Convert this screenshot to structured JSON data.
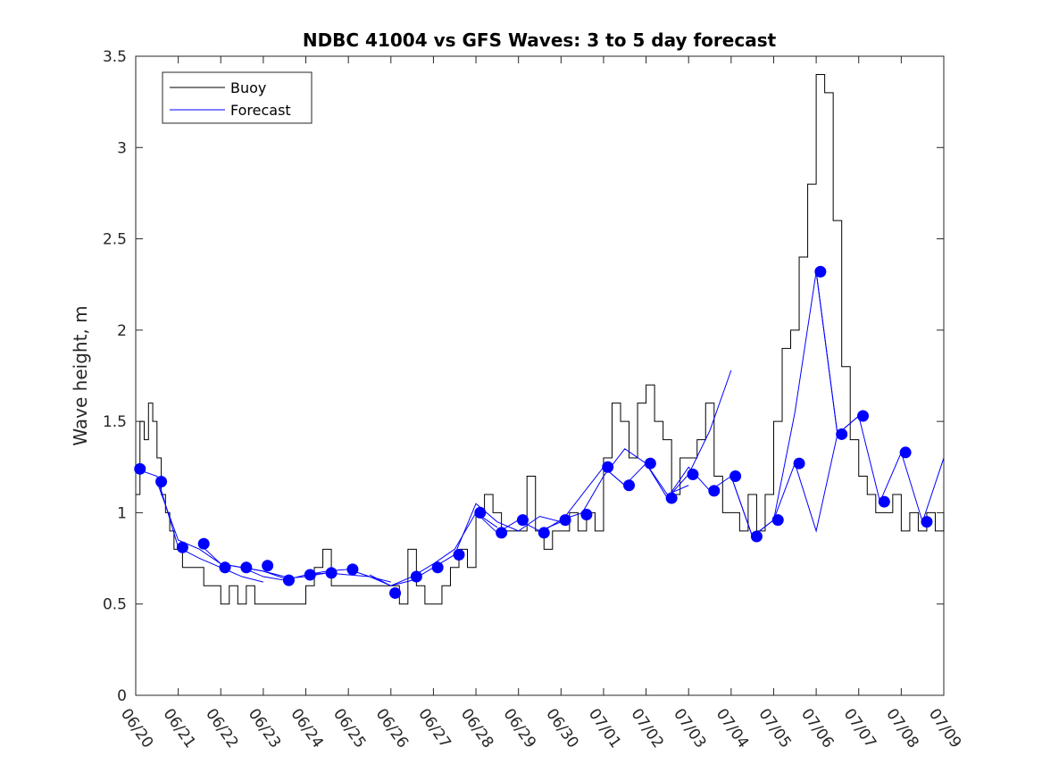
{
  "chart_data": {
    "type": "line",
    "title": "NDBC 41004 vs GFS Waves: 3 to 5 day forecast",
    "xlabel": "",
    "ylabel": "Wave height, m",
    "xlim": [
      0,
      19
    ],
    "ylim": [
      0,
      3.5
    ],
    "grid": false,
    "legend_placement": "top-left",
    "x_ticks": [
      "06/20",
      "06/21",
      "06/22",
      "06/23",
      "06/24",
      "06/25",
      "06/26",
      "06/27",
      "06/28",
      "06/29",
      "06/30",
      "07/01",
      "07/02",
      "07/03",
      "07/04",
      "07/05",
      "07/06",
      "07/07",
      "07/08",
      "07/09"
    ],
    "y_ticks": [
      "0",
      "0.5",
      "1",
      "1.5",
      "2",
      "2.5",
      "3",
      "3.5"
    ],
    "colors": {
      "buoy": "#000000",
      "forecast": "#0000ff",
      "axes": "#262626"
    },
    "legend": [
      "Buoy",
      "Forecast"
    ],
    "series": [
      {
        "name": "Buoy",
        "style": "line",
        "x": [
          0,
          0.1,
          0.2,
          0.3,
          0.4,
          0.5,
          0.6,
          0.7,
          0.8,
          0.9,
          1.0,
          1.1,
          1.2,
          1.4,
          1.6,
          1.8,
          2.0,
          2.2,
          2.4,
          2.6,
          2.8,
          3.0,
          3.2,
          3.5,
          3.8,
          4.0,
          4.2,
          4.4,
          4.6,
          4.8,
          5.0,
          5.2,
          5.5,
          5.8,
          6.0,
          6.2,
          6.4,
          6.6,
          6.8,
          7.0,
          7.2,
          7.4,
          7.6,
          7.8,
          8.0,
          8.2,
          8.4,
          8.6,
          8.8,
          9.0,
          9.2,
          9.4,
          9.6,
          9.8,
          10.0,
          10.2,
          10.4,
          10.6,
          10.8,
          11.0,
          11.2,
          11.4,
          11.6,
          11.8,
          12.0,
          12.2,
          12.4,
          12.6,
          12.8,
          13.0,
          13.2,
          13.4,
          13.6,
          13.8,
          14.0,
          14.2,
          14.4,
          14.6,
          14.8,
          15.0,
          15.2,
          15.4,
          15.6,
          15.8,
          16.0,
          16.2,
          16.4,
          16.6,
          16.8,
          17.0,
          17.2,
          17.4,
          17.6,
          17.8,
          18.0,
          18.2,
          18.4,
          18.6,
          18.8,
          19.0
        ],
        "values": [
          1.1,
          1.5,
          1.4,
          1.6,
          1.5,
          1.3,
          1.1,
          1.0,
          0.9,
          0.8,
          0.8,
          0.7,
          0.7,
          0.7,
          0.6,
          0.6,
          0.5,
          0.6,
          0.5,
          0.6,
          0.5,
          0.5,
          0.5,
          0.5,
          0.5,
          0.6,
          0.7,
          0.8,
          0.6,
          0.6,
          0.6,
          0.6,
          0.6,
          0.6,
          0.6,
          0.5,
          0.8,
          0.6,
          0.5,
          0.5,
          0.6,
          0.7,
          0.8,
          0.7,
          1.0,
          1.1,
          1.0,
          0.9,
          0.9,
          0.9,
          1.2,
          0.9,
          0.8,
          0.9,
          0.9,
          1.0,
          0.9,
          1.0,
          0.9,
          1.3,
          1.6,
          1.5,
          1.3,
          1.6,
          1.7,
          1.5,
          1.4,
          1.1,
          1.3,
          1.3,
          1.4,
          1.6,
          1.2,
          1.0,
          1.0,
          0.9,
          1.1,
          0.9,
          1.1,
          1.5,
          1.9,
          2.0,
          2.4,
          2.8,
          3.4,
          3.3,
          2.6,
          1.8,
          1.4,
          1.2,
          1.1,
          1.0,
          1.0,
          1.1,
          0.9,
          1.0,
          0.9,
          1.0,
          0.9,
          1.0
        ]
      },
      {
        "name": "Forecast",
        "style": "lines",
        "segments": [
          {
            "x": [
              0,
              0.5,
              1,
              1.5,
              2,
              2.5,
              3
            ],
            "values": [
              1.24,
              1.2,
              0.81,
              0.75,
              0.7,
              0.65,
              0.62
            ]
          },
          {
            "x": [
              0.5,
              1,
              1.5,
              2,
              2.5,
              3,
              3.5
            ],
            "values": [
              1.17,
              0.85,
              0.8,
              0.72,
              0.7,
              0.68,
              0.65
            ]
          },
          {
            "x": [
              1.5,
              2,
              2.5,
              3,
              3.5,
              4,
              4.5
            ],
            "values": [
              0.83,
              0.72,
              0.7,
              0.65,
              0.63,
              0.66,
              0.67
            ]
          },
          {
            "x": [
              2.5,
              3,
              3.5,
              4,
              4.5,
              5,
              5.5,
              6
            ],
            "values": [
              0.7,
              0.68,
              0.64,
              0.65,
              0.67,
              0.66,
              0.65,
              0.62
            ]
          },
          {
            "x": [
              4,
              4.5,
              5,
              5.5,
              6,
              6.5,
              7
            ],
            "values": [
              0.66,
              0.68,
              0.69,
              0.65,
              0.6,
              0.63,
              0.7
            ]
          },
          {
            "x": [
              5.5,
              6,
              6.5,
              7,
              7.5,
              8,
              8.5
            ],
            "values": [
              0.66,
              0.6,
              0.65,
              0.72,
              0.8,
              1.0,
              0.92
            ]
          },
          {
            "x": [
              7,
              7.5,
              8,
              8.5,
              9,
              9.5,
              10
            ],
            "values": [
              0.7,
              0.77,
              1.05,
              0.95,
              0.9,
              0.98,
              0.95
            ]
          },
          {
            "x": [
              8,
              8.5,
              9,
              9.5,
              10,
              10.5,
              11,
              11.5
            ],
            "values": [
              1.0,
              0.89,
              0.96,
              0.9,
              0.95,
              1.1,
              1.25,
              1.15
            ]
          },
          {
            "x": [
              9.5,
              10,
              10.5,
              11,
              11.5,
              12,
              12.5,
              13
            ],
            "values": [
              0.89,
              0.96,
              1.0,
              1.2,
              1.35,
              1.27,
              1.1,
              1.15
            ]
          },
          {
            "x": [
              11,
              11.5,
              12,
              12.5,
              13,
              13.5,
              14
            ],
            "values": [
              1.25,
              1.15,
              1.27,
              1.08,
              1.21,
              1.45,
              1.78
            ]
          },
          {
            "x": [
              12.5,
              13,
              13.5,
              14,
              14.5,
              15,
              15.5,
              16,
              16.5
            ],
            "values": [
              1.08,
              1.25,
              1.12,
              1.2,
              0.87,
              0.96,
              1.55,
              2.32,
              1.43
            ]
          },
          {
            "x": [
              14,
              14.5,
              15,
              15.5,
              16,
              16.5,
              17
            ],
            "values": [
              1.2,
              0.87,
              0.96,
              1.27,
              0.9,
              1.43,
              1.53
            ]
          },
          {
            "x": [
              16,
              16.5,
              17,
              17.5,
              18,
              18.5,
              19
            ],
            "values": [
              2.32,
              1.43,
              1.53,
              1.06,
              1.33,
              0.95,
              1.3
            ]
          }
        ]
      },
      {
        "name": "Forecast points",
        "style": "markers",
        "x": [
          0.1,
          0.6,
          1.1,
          1.6,
          2.1,
          2.6,
          3.1,
          3.6,
          4.1,
          4.6,
          5.1,
          6.1,
          6.6,
          7.1,
          7.6,
          8.1,
          8.6,
          9.1,
          9.6,
          10.1,
          10.6,
          11.1,
          11.6,
          12.1,
          12.6,
          13.1,
          13.6,
          14.1,
          14.6,
          15.1,
          15.6,
          16.1,
          16.6,
          17.1,
          17.6,
          18.1,
          18.6
        ],
        "values": [
          1.24,
          1.17,
          0.81,
          0.83,
          0.7,
          0.7,
          0.71,
          0.63,
          0.66,
          0.67,
          0.69,
          0.56,
          0.65,
          0.7,
          0.77,
          1.0,
          0.89,
          0.96,
          0.89,
          0.96,
          0.99,
          1.25,
          1.15,
          1.27,
          1.08,
          1.21,
          1.12,
          1.2,
          0.87,
          0.96,
          1.27,
          2.32,
          1.43,
          1.53,
          1.06,
          1.33,
          0.95
        ]
      }
    ]
  }
}
